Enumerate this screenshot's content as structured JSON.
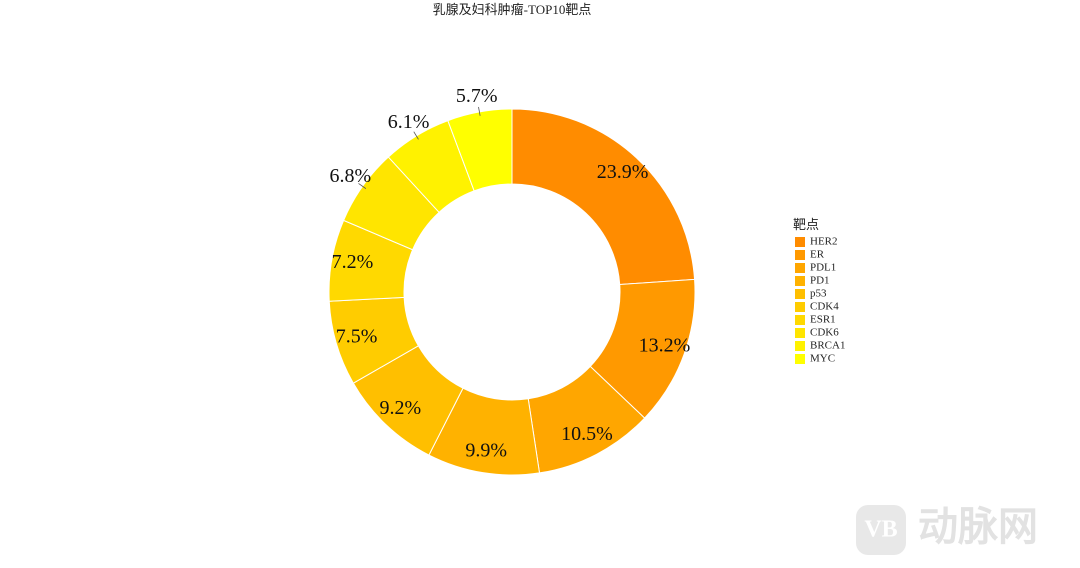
{
  "chart_data": {
    "type": "donut",
    "title": "乳腺及妇科肿瘤-TOP10靶点",
    "legend_title": "靶点",
    "legend": "right",
    "categories": [
      "HER2",
      "ER",
      "PDL1",
      "PD1",
      "p53",
      "CDK4",
      "ESR1",
      "CDK6",
      "BRCA1",
      "MYC"
    ],
    "values": [
      23.9,
      13.2,
      10.5,
      9.9,
      9.2,
      7.5,
      7.2,
      6.8,
      6.1,
      5.7
    ],
    "value_labels": [
      "23.9%",
      "13.2%",
      "10.5%",
      "9.9%",
      "9.2%",
      "7.5%",
      "7.2%",
      "6.8%",
      "6.1%",
      "5.7%"
    ],
    "colors": [
      "#ff8c00",
      "#ff9900",
      "#ffa600",
      "#ffb200",
      "#ffbf00",
      "#ffcc00",
      "#ffd900",
      "#ffe500",
      "#fff200",
      "#ffff00"
    ]
  },
  "watermark": "动脉网"
}
